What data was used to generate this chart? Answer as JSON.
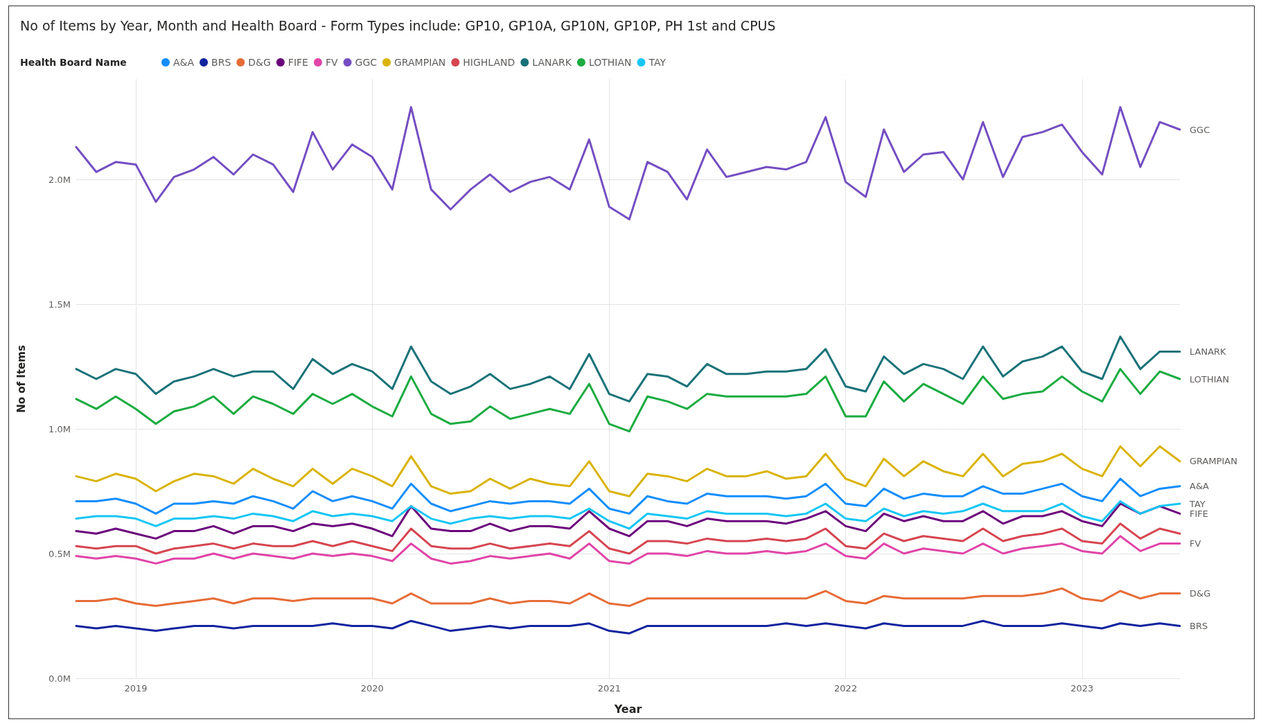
{
  "chart_data": {
    "type": "line",
    "title": "No of Items by Year, Month and Health Board - Form Types include: GP10, GP10A, GP10N, GP10P, PH 1st and CPUS",
    "legend_title": "Health Board Name",
    "xlabel": "Year",
    "ylabel": "No of Items",
    "x": [
      "2018-10",
      "2018-11",
      "2018-12",
      "2019-01",
      "2019-02",
      "2019-03",
      "2019-04",
      "2019-05",
      "2019-06",
      "2019-07",
      "2019-08",
      "2019-09",
      "2019-10",
      "2019-11",
      "2019-12",
      "2020-01",
      "2020-02",
      "2020-03",
      "2020-04",
      "2020-05",
      "2020-06",
      "2020-07",
      "2020-08",
      "2020-09",
      "2020-10",
      "2020-11",
      "2020-12",
      "2021-01",
      "2021-02",
      "2021-03",
      "2021-04",
      "2021-05",
      "2021-06",
      "2021-07",
      "2021-08",
      "2021-09",
      "2021-10",
      "2021-11",
      "2021-12",
      "2022-01",
      "2022-02",
      "2022-03",
      "2022-04",
      "2022-05",
      "2022-06",
      "2022-07",
      "2022-08",
      "2022-09",
      "2022-10",
      "2022-11",
      "2022-12",
      "2023-01",
      "2023-02",
      "2023-03",
      "2023-04",
      "2023-05",
      "2023-06"
    ],
    "series": [
      {
        "name": "A&A",
        "color": "#118dff",
        "values": [
          0.71,
          0.71,
          0.72,
          0.7,
          0.66,
          0.7,
          0.7,
          0.71,
          0.7,
          0.73,
          0.71,
          0.68,
          0.75,
          0.71,
          0.73,
          0.71,
          0.68,
          0.78,
          0.7,
          0.67,
          0.69,
          0.71,
          0.7,
          0.71,
          0.71,
          0.7,
          0.76,
          0.68,
          0.66,
          0.73,
          0.71,
          0.7,
          0.74,
          0.73,
          0.73,
          0.73,
          0.72,
          0.73,
          0.78,
          0.7,
          0.69,
          0.76,
          0.72,
          0.74,
          0.73,
          0.73,
          0.77,
          0.74,
          0.74,
          0.76,
          0.78,
          0.73,
          0.71,
          0.8,
          0.73,
          0.76,
          0.77
        ]
      },
      {
        "name": "BRS",
        "color": "#12239e",
        "values": [
          0.21,
          0.2,
          0.21,
          0.2,
          0.19,
          0.2,
          0.21,
          0.21,
          0.2,
          0.21,
          0.21,
          0.21,
          0.21,
          0.22,
          0.21,
          0.21,
          0.2,
          0.23,
          0.21,
          0.19,
          0.2,
          0.21,
          0.2,
          0.21,
          0.21,
          0.21,
          0.22,
          0.19,
          0.18,
          0.21,
          0.21,
          0.21,
          0.21,
          0.21,
          0.21,
          0.21,
          0.22,
          0.21,
          0.22,
          0.21,
          0.2,
          0.22,
          0.21,
          0.21,
          0.21,
          0.21,
          0.23,
          0.21,
          0.21,
          0.21,
          0.22,
          0.21,
          0.2,
          0.22,
          0.21,
          0.22,
          0.21
        ]
      },
      {
        "name": "D&G",
        "color": "#e66c37",
        "values": [
          0.31,
          0.31,
          0.32,
          0.3,
          0.29,
          0.3,
          0.31,
          0.32,
          0.3,
          0.32,
          0.32,
          0.31,
          0.32,
          0.32,
          0.32,
          0.32,
          0.3,
          0.34,
          0.3,
          0.3,
          0.3,
          0.32,
          0.3,
          0.31,
          0.31,
          0.3,
          0.34,
          0.3,
          0.29,
          0.32,
          0.32,
          0.32,
          0.32,
          0.32,
          0.32,
          0.32,
          0.32,
          0.32,
          0.35,
          0.31,
          0.3,
          0.33,
          0.32,
          0.32,
          0.32,
          0.32,
          0.33,
          0.33,
          0.33,
          0.34,
          0.36,
          0.32,
          0.31,
          0.35,
          0.32,
          0.34,
          0.34
        ]
      },
      {
        "name": "FIFE",
        "color": "#6b007b",
        "values": [
          0.59,
          0.58,
          0.6,
          0.58,
          0.56,
          0.59,
          0.59,
          0.61,
          0.58,
          0.61,
          0.61,
          0.59,
          0.62,
          0.61,
          0.62,
          0.6,
          0.57,
          0.69,
          0.6,
          0.59,
          0.59,
          0.62,
          0.59,
          0.61,
          0.61,
          0.6,
          0.67,
          0.6,
          0.57,
          0.63,
          0.63,
          0.61,
          0.64,
          0.63,
          0.63,
          0.63,
          0.62,
          0.64,
          0.67,
          0.61,
          0.59,
          0.66,
          0.63,
          0.65,
          0.63,
          0.63,
          0.67,
          0.62,
          0.65,
          0.65,
          0.67,
          0.63,
          0.61,
          0.7,
          0.66,
          0.69,
          0.66
        ]
      },
      {
        "name": "FV",
        "color": "#e044a7",
        "values": [
          0.49,
          0.48,
          0.49,
          0.48,
          0.46,
          0.48,
          0.48,
          0.5,
          0.48,
          0.5,
          0.49,
          0.48,
          0.5,
          0.49,
          0.5,
          0.49,
          0.47,
          0.54,
          0.48,
          0.46,
          0.47,
          0.49,
          0.48,
          0.49,
          0.5,
          0.48,
          0.54,
          0.47,
          0.46,
          0.5,
          0.5,
          0.49,
          0.51,
          0.5,
          0.5,
          0.51,
          0.5,
          0.51,
          0.54,
          0.49,
          0.48,
          0.54,
          0.5,
          0.52,
          0.51,
          0.5,
          0.54,
          0.5,
          0.52,
          0.53,
          0.54,
          0.51,
          0.5,
          0.57,
          0.51,
          0.54,
          0.54
        ]
      },
      {
        "name": "GGC",
        "color": "#744ec2",
        "values": [
          2.13,
          2.03,
          2.07,
          2.06,
          1.91,
          2.01,
          2.04,
          2.09,
          2.02,
          2.1,
          2.06,
          1.95,
          2.19,
          2.04,
          2.14,
          2.09,
          1.96,
          2.29,
          1.96,
          1.88,
          1.96,
          2.02,
          1.95,
          1.99,
          2.01,
          1.96,
          2.16,
          1.89,
          1.84,
          2.07,
          2.03,
          1.92,
          2.12,
          2.01,
          2.03,
          2.05,
          2.04,
          2.07,
          2.25,
          1.99,
          1.93,
          2.2,
          2.03,
          2.1,
          2.11,
          2.0,
          2.23,
          2.01,
          2.17,
          2.19,
          2.22,
          2.11,
          2.02,
          2.29,
          2.05,
          2.23,
          2.2
        ]
      },
      {
        "name": "GRAMPIAN",
        "color": "#d9b300",
        "values": [
          0.81,
          0.79,
          0.82,
          0.8,
          0.75,
          0.79,
          0.82,
          0.81,
          0.78,
          0.84,
          0.8,
          0.77,
          0.84,
          0.78,
          0.84,
          0.81,
          0.77,
          0.89,
          0.77,
          0.74,
          0.75,
          0.8,
          0.76,
          0.8,
          0.78,
          0.77,
          0.87,
          0.75,
          0.73,
          0.82,
          0.81,
          0.79,
          0.84,
          0.81,
          0.81,
          0.83,
          0.8,
          0.81,
          0.9,
          0.8,
          0.77,
          0.88,
          0.81,
          0.87,
          0.83,
          0.81,
          0.9,
          0.81,
          0.86,
          0.87,
          0.9,
          0.84,
          0.81,
          0.93,
          0.85,
          0.93,
          0.87
        ]
      },
      {
        "name": "HIGHLAND",
        "color": "#d64550",
        "values": [
          0.53,
          0.52,
          0.53,
          0.53,
          0.5,
          0.52,
          0.53,
          0.54,
          0.52,
          0.54,
          0.53,
          0.53,
          0.55,
          0.53,
          0.55,
          0.53,
          0.51,
          0.6,
          0.53,
          0.52,
          0.52,
          0.54,
          0.52,
          0.53,
          0.54,
          0.53,
          0.59,
          0.52,
          0.5,
          0.55,
          0.55,
          0.54,
          0.56,
          0.55,
          0.55,
          0.56,
          0.55,
          0.56,
          0.6,
          0.53,
          0.52,
          0.58,
          0.55,
          0.57,
          0.56,
          0.55,
          0.6,
          0.55,
          0.57,
          0.58,
          0.6,
          0.55,
          0.54,
          0.62,
          0.56,
          0.6,
          0.58
        ]
      },
      {
        "name": "LANARK",
        "color": "#197278",
        "values": [
          1.24,
          1.2,
          1.24,
          1.22,
          1.14,
          1.19,
          1.21,
          1.24,
          1.21,
          1.23,
          1.23,
          1.16,
          1.28,
          1.22,
          1.26,
          1.23,
          1.16,
          1.33,
          1.19,
          1.14,
          1.17,
          1.22,
          1.16,
          1.18,
          1.21,
          1.16,
          1.3,
          1.14,
          1.11,
          1.22,
          1.21,
          1.17,
          1.26,
          1.22,
          1.22,
          1.23,
          1.23,
          1.24,
          1.32,
          1.17,
          1.15,
          1.29,
          1.22,
          1.26,
          1.24,
          1.2,
          1.33,
          1.21,
          1.27,
          1.29,
          1.33,
          1.23,
          1.2,
          1.37,
          1.24,
          1.31,
          1.31
        ]
      },
      {
        "name": "LOTHIAN",
        "color": "#1aab40",
        "values": [
          1.12,
          1.08,
          1.13,
          1.08,
          1.02,
          1.07,
          1.09,
          1.13,
          1.06,
          1.13,
          1.1,
          1.06,
          1.14,
          1.1,
          1.14,
          1.09,
          1.05,
          1.21,
          1.06,
          1.02,
          1.03,
          1.09,
          1.04,
          1.06,
          1.08,
          1.06,
          1.18,
          1.02,
          0.99,
          1.13,
          1.11,
          1.08,
          1.14,
          1.13,
          1.13,
          1.13,
          1.13,
          1.14,
          1.21,
          1.05,
          1.05,
          1.19,
          1.11,
          1.18,
          1.14,
          1.1,
          1.21,
          1.12,
          1.14,
          1.15,
          1.21,
          1.15,
          1.11,
          1.24,
          1.14,
          1.23,
          1.2
        ]
      },
      {
        "name": "TAY",
        "color": "#15c6f4",
        "values": [
          0.64,
          0.65,
          0.65,
          0.64,
          0.61,
          0.64,
          0.64,
          0.65,
          0.64,
          0.66,
          0.65,
          0.63,
          0.67,
          0.65,
          0.66,
          0.65,
          0.63,
          0.69,
          0.64,
          0.62,
          0.64,
          0.65,
          0.64,
          0.65,
          0.65,
          0.64,
          0.68,
          0.63,
          0.6,
          0.66,
          0.65,
          0.64,
          0.67,
          0.66,
          0.66,
          0.66,
          0.65,
          0.66,
          0.7,
          0.64,
          0.63,
          0.68,
          0.65,
          0.67,
          0.66,
          0.67,
          0.7,
          0.67,
          0.67,
          0.67,
          0.7,
          0.65,
          0.63,
          0.71,
          0.66,
          0.69,
          0.7
        ]
      }
    ],
    "annotations": [
      {
        "text": "GGC",
        "x": "2023-06",
        "y": 2.2
      },
      {
        "text": "LANARK",
        "x": "2023-06",
        "y": 1.31
      },
      {
        "text": "LOTHIAN",
        "x": "2023-06",
        "y": 1.2
      },
      {
        "text": "GRAMPIAN",
        "x": "2023-06",
        "y": 0.87
      },
      {
        "text": "A&A",
        "x": "2023-06",
        "y": 0.77
      },
      {
        "text": "TAY",
        "x": "2023-06",
        "y": 0.7
      },
      {
        "text": "FIFE",
        "x": "2023-06",
        "y": 0.66
      },
      {
        "text": "FV",
        "x": "2023-06",
        "y": 0.54
      },
      {
        "text": "D&G",
        "x": "2023-06",
        "y": 0.34
      },
      {
        "text": "BRS",
        "x": "2023-06",
        "y": 0.21
      }
    ],
    "xlim": [
      "2018-10",
      "2023-06"
    ],
    "xticks": [
      "2019",
      "2020",
      "2021",
      "2022",
      "2023"
    ],
    "ylim": [
      0,
      2.4
    ],
    "yticks": [
      {
        "value": 0,
        "label": "0.0M"
      },
      {
        "value": 0.5,
        "label": "0.5M"
      },
      {
        "value": 1,
        "label": "1.0M"
      },
      {
        "value": 1.5,
        "label": "1.5M"
      },
      {
        "value": 2,
        "label": "2.0M"
      }
    ],
    "grid": true,
    "legend": "top left",
    "marker": "none",
    "line_style": "solid"
  }
}
